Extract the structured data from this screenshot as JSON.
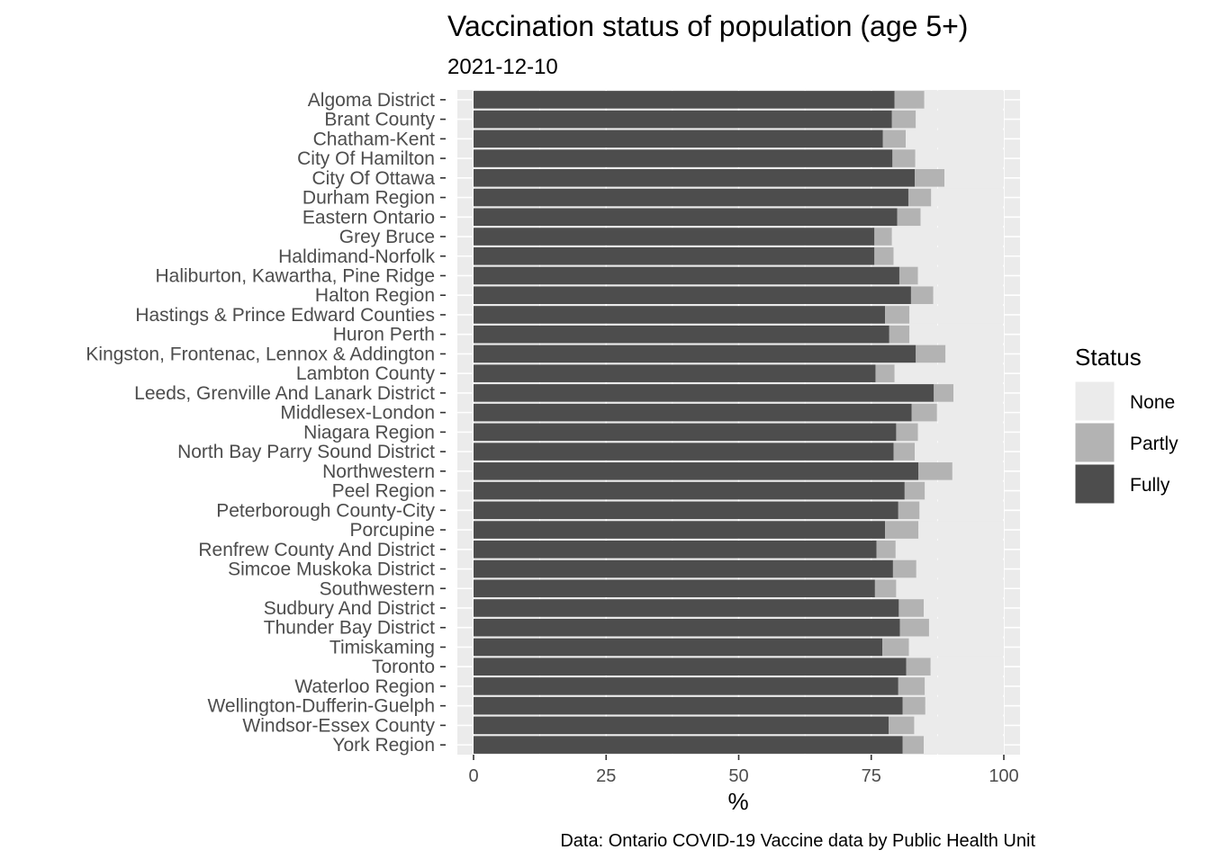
{
  "chart_data": {
    "type": "bar",
    "orientation": "horizontal",
    "stacked": true,
    "title": "Vaccination status of population (age 5+)",
    "subtitle": "2021-12-10",
    "xlabel": "%",
    "ylabel": "",
    "caption": "Data: Ontario COVID-19 Vaccine data by Public Health Unit",
    "xlim": [
      0,
      100
    ],
    "xticks": [
      0,
      25,
      50,
      75,
      100
    ],
    "grid": true,
    "legend": {
      "title": "Status",
      "position": "right",
      "entries": [
        {
          "label": "None",
          "color": "#EBEBEB"
        },
        {
          "label": "Partly",
          "color": "#B3B3B3"
        },
        {
          "label": "Fully",
          "color": "#4D4D4D"
        }
      ]
    },
    "colors": {
      "panel_background": "#EBEBEB",
      "grid": "#FFFFFF",
      "fully": "#4D4D4D",
      "partly": "#B3B3B3",
      "none": "#EBEBEB",
      "text": "#4D4D4D",
      "title": "#000000"
    },
    "categories": [
      "Algoma District",
      "Brant County",
      "Chatham-Kent",
      "City Of Hamilton",
      "City Of Ottawa",
      "Durham Region",
      "Eastern Ontario",
      "Grey Bruce",
      "Haldimand-Norfolk",
      "Haliburton, Kawartha, Pine Ridge",
      "Halton Region",
      "Hastings & Prince Edward Counties",
      "Huron Perth",
      "Kingston, Frontenac, Lennox & Addington",
      "Lambton County",
      "Leeds, Grenville And Lanark District",
      "Middlesex-London",
      "Niagara Region",
      "North Bay Parry Sound District",
      "Northwestern",
      "Peel Region",
      "Peterborough County-City",
      "Porcupine",
      "Renfrew County And District",
      "Simcoe Muskoka District",
      "Southwestern",
      "Sudbury And District",
      "Thunder Bay District",
      "Timiskaming",
      "Toronto",
      "Waterloo Region",
      "Wellington-Dufferin-Guelph",
      "Windsor-Essex County",
      "York Region"
    ],
    "series": [
      {
        "name": "Fully",
        "values": [
          79.4,
          78.9,
          77.2,
          79.0,
          83.2,
          82.0,
          79.9,
          75.6,
          75.6,
          80.3,
          82.5,
          77.6,
          78.4,
          83.4,
          75.8,
          86.8,
          82.6,
          79.7,
          79.2,
          83.9,
          81.3,
          80.1,
          77.6,
          76.0,
          79.1,
          75.7,
          80.2,
          80.4,
          77.1,
          81.6,
          80.1,
          80.9,
          78.3,
          80.9
        ]
      },
      {
        "name": "Partly",
        "values": [
          5.6,
          4.5,
          4.3,
          4.3,
          5.6,
          4.3,
          4.4,
          3.3,
          3.6,
          3.5,
          4.2,
          4.6,
          3.8,
          5.6,
          3.6,
          3.7,
          4.8,
          4.1,
          4.0,
          6.4,
          3.8,
          4.0,
          6.3,
          3.6,
          4.4,
          4.0,
          4.7,
          5.5,
          5.0,
          4.6,
          5.0,
          4.3,
          4.8,
          4.0
        ]
      },
      {
        "name": "None",
        "values": [
          15.0,
          16.6,
          18.5,
          16.7,
          11.2,
          13.7,
          15.7,
          21.1,
          20.8,
          16.2,
          13.3,
          17.8,
          17.8,
          11.0,
          20.6,
          9.5,
          12.6,
          16.2,
          16.8,
          9.7,
          14.9,
          15.9,
          16.1,
          20.4,
          16.5,
          20.3,
          15.1,
          14.1,
          17.9,
          13.8,
          14.9,
          14.8,
          16.9,
          15.1
        ]
      }
    ]
  }
}
